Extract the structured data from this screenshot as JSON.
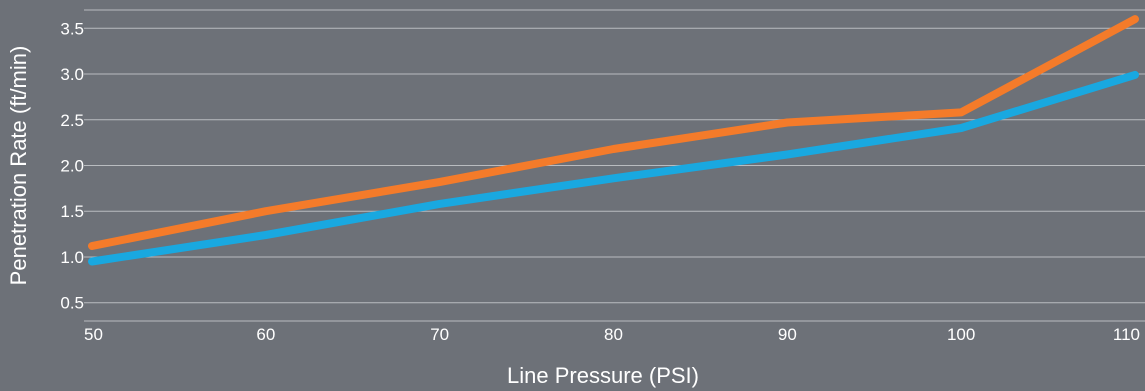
{
  "chart_data": {
    "type": "line",
    "title": "",
    "xlabel": "Line Pressure (PSI)",
    "ylabel": "Penetration Rate (ft/min)",
    "x": [
      50,
      60,
      70,
      80,
      90,
      100,
      110
    ],
    "x_ticks": [
      "50",
      "60",
      "70",
      "80",
      "90",
      "100",
      "110"
    ],
    "y_ticks": [
      "0.5",
      "1.0",
      "1.5",
      "2.0",
      "2.5",
      "3.0",
      "3.5"
    ],
    "xlim": [
      50,
      110
    ],
    "ylim": [
      0.3,
      3.7
    ],
    "grid": true,
    "series": [
      {
        "color": "#f47b2a",
        "values": [
          1.12,
          1.5,
          1.82,
          2.18,
          2.47,
          2.58,
          3.6
        ]
      },
      {
        "color": "#19a8e0",
        "values": [
          0.95,
          1.24,
          1.58,
          1.86,
          2.12,
          2.41,
          2.99
        ]
      }
    ]
  },
  "colors": {
    "background": "#6d7178",
    "gridline": "#b9bcc0",
    "text": "#ffffff"
  }
}
